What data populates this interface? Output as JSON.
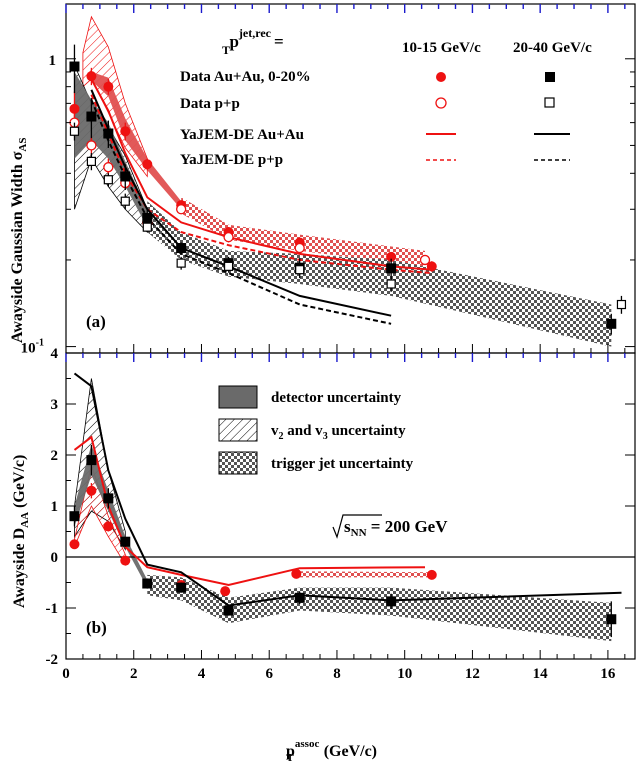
{
  "chart_data": [
    {
      "type": "scatter",
      "panel_label": "(a)",
      "ylabel": "Awayside Gaussian Width σ",
      "ylabel_sub": "AS",
      "y_scale": "log",
      "xlim": [
        0,
        16.8
      ],
      "ylim": [
        0.095,
        1.55
      ],
      "y_ticks": [
        {
          "value": 1,
          "label": "1"
        },
        {
          "value": 0.1,
          "label": "10",
          "sup": "-1"
        }
      ],
      "legend": {
        "title": "p",
        "title_sup": "jet,rec",
        "title_sub": "T",
        "title_suffix": "=",
        "col1": "10-15 GeV/c",
        "col2": "20-40 GeV/c",
        "rows": [
          "Data Au+Au, 0-20%",
          "Data p+p",
          "YaJEM-DE Au+Au",
          "YaJEM-DE p+p"
        ]
      },
      "series": [
        {
          "name": "Data Au+Au, 0-20% (10-15 GeV/c)",
          "color": "#ee1111",
          "marker": "circle-filled",
          "x": [
            0.25,
            0.75,
            1.25,
            1.75,
            2.4,
            3.4,
            4.8,
            6.9,
            9.6,
            10.8
          ],
          "y": [
            0.67,
            0.87,
            0.8,
            0.56,
            0.43,
            0.31,
            0.25,
            0.23,
            0.205,
            0.19
          ],
          "err": [
            0.1,
            0.06,
            0.05,
            0.04,
            0.02,
            0.01,
            0.01,
            0.008,
            0.008,
            0.008
          ]
        },
        {
          "name": "Data p+p (10-15 GeV/c)",
          "color": "#ee1111",
          "marker": "circle-open",
          "x": [
            0.25,
            0.75,
            1.25,
            1.75,
            2.4,
            3.4,
            4.8,
            6.9,
            10.6
          ],
          "y": [
            0.6,
            0.5,
            0.42,
            0.37,
            0.27,
            0.3,
            0.24,
            0.22,
            0.2
          ],
          "err": [
            0.05,
            0.04,
            0.03,
            0.02,
            0.01,
            0.01,
            0.01,
            0.008,
            0.008
          ]
        },
        {
          "name": "Data Au+Au, 0-20% (20-40 GeV/c)",
          "color": "#000000",
          "marker": "square-filled",
          "x": [
            0.25,
            0.75,
            1.25,
            1.75,
            2.4,
            3.4,
            4.8,
            6.9,
            9.6,
            16.1
          ],
          "y": [
            0.94,
            0.63,
            0.55,
            0.39,
            0.28,
            0.22,
            0.195,
            0.188,
            0.187,
            0.12
          ],
          "err": [
            0.18,
            0.1,
            0.06,
            0.04,
            0.02,
            0.01,
            0.01,
            0.015,
            0.015,
            0.01
          ]
        },
        {
          "name": "Data p+p (20-40 GeV/c)",
          "color": "#000000",
          "marker": "square-open",
          "x": [
            0.25,
            0.75,
            1.25,
            1.75,
            2.4,
            3.4,
            4.8,
            6.9,
            9.6,
            16.4
          ],
          "y": [
            0.56,
            0.44,
            0.38,
            0.32,
            0.26,
            0.195,
            0.19,
            0.185,
            0.165,
            0.14
          ],
          "err": [
            0.04,
            0.03,
            0.02,
            0.02,
            0.01,
            0.01,
            0.008,
            0.008,
            0.01,
            0.01
          ]
        }
      ],
      "model_lines": [
        {
          "name": "YaJEM-DE Au+Au (10-15 GeV/c)",
          "color": "#ee1111",
          "dash": "solid",
          "x": [
            0.75,
            1.25,
            1.75,
            2.4,
            3.4,
            4.8,
            6.9,
            9.6,
            10.8
          ],
          "y": [
            0.85,
            0.66,
            0.47,
            0.33,
            0.27,
            0.24,
            0.21,
            0.19,
            0.185
          ]
        },
        {
          "name": "YaJEM-DE p+p (10-15 GeV/c)",
          "color": "#ee1111",
          "dash": "dashed",
          "x": [
            0.75,
            1.25,
            1.75,
            2.4,
            3.4,
            4.8,
            6.9,
            9.6,
            10.8
          ],
          "y": [
            0.75,
            0.55,
            0.4,
            0.3,
            0.25,
            0.225,
            0.2,
            0.185,
            0.18
          ]
        },
        {
          "name": "YaJEM-DE Au+Au (20-40 GeV/c)",
          "color": "#000000",
          "dash": "solid",
          "x": [
            0.75,
            1.25,
            1.75,
            2.4,
            3.4,
            4.8,
            6.9,
            9.6
          ],
          "y": [
            0.78,
            0.57,
            0.42,
            0.3,
            0.22,
            0.19,
            0.15,
            0.128
          ]
        },
        {
          "name": "YaJEM-DE p+p (20-40 GeV/c)",
          "color": "#000000",
          "dash": "dashed",
          "x": [
            0.75,
            1.25,
            1.75,
            2.4,
            3.4,
            4.8,
            6.9,
            9.6
          ],
          "y": [
            0.72,
            0.52,
            0.39,
            0.28,
            0.21,
            0.18,
            0.14,
            0.12
          ]
        }
      ],
      "bands": [
        {
          "name": "v2 and v3 uncertainty (10-15 GeV/c)",
          "style": "hatch",
          "color": "#ee1111",
          "x": [
            0.5,
            0.75,
            1.25,
            1.75,
            2.4
          ],
          "low": [
            0.8,
            0.85,
            0.65,
            0.49,
            0.39
          ],
          "high": [
            1.05,
            1.4,
            1.1,
            0.7,
            0.45
          ]
        },
        {
          "name": "detector uncertainty (10-15 GeV/c)",
          "style": "solid",
          "color": "#e05050",
          "x": [
            0.75,
            1.25,
            1.75,
            2.4,
            3.4,
            4.8
          ],
          "low": [
            0.84,
            0.74,
            0.52,
            0.41,
            0.3,
            0.245
          ],
          "high": [
            0.9,
            0.86,
            0.62,
            0.45,
            0.32,
            0.255
          ]
        },
        {
          "name": "trigger jet uncertainty (10-15 GeV/c)",
          "style": "checker",
          "color": "#ee1111",
          "x": [
            3.4,
            4.8,
            6.9,
            10.6
          ],
          "low": [
            0.29,
            0.235,
            0.215,
            0.19
          ],
          "high": [
            0.33,
            0.265,
            0.245,
            0.215
          ]
        },
        {
          "name": "v2 and v3 uncertainty (20-40 GeV/c)",
          "style": "hatch",
          "color": "#000000",
          "x": [
            0.25,
            0.75,
            1.25,
            1.75,
            2.4
          ],
          "low": [
            0.3,
            0.45,
            0.36,
            0.3,
            0.25
          ],
          "high": [
            0.95,
            0.7,
            0.58,
            0.46,
            0.3
          ]
        },
        {
          "name": "detector uncertainty (20-40 GeV/c)",
          "style": "solid",
          "color": "#6a6a6a",
          "x": [
            0.25,
            0.75,
            1.25,
            1.75,
            2.4,
            3.4,
            4.8,
            6.9,
            9.6,
            16.1
          ],
          "low": [
            0.45,
            0.52,
            0.45,
            0.36,
            0.26,
            0.21,
            0.185,
            0.18,
            0.165,
            0.115
          ],
          "high": [
            0.9,
            0.72,
            0.6,
            0.44,
            0.3,
            0.235,
            0.205,
            0.2,
            0.19,
            0.125
          ]
        },
        {
          "name": "trigger jet uncertainty (20-40 GeV/c)",
          "style": "checker",
          "color": "#000000",
          "x": [
            2.4,
            3.4,
            4.8,
            6.9,
            9.6,
            16.1
          ],
          "low": [
            0.25,
            0.2,
            0.175,
            0.165,
            0.15,
            0.1
          ],
          "high": [
            0.32,
            0.25,
            0.215,
            0.21,
            0.2,
            0.14
          ]
        }
      ]
    },
    {
      "type": "scatter",
      "panel_label": "(b)",
      "ylabel": "Awayside D",
      "ylabel_sub": "AA",
      "ylabel_suffix": " (GeV/c)",
      "xlabel": "p",
      "xlabel_sup": "assoc",
      "xlabel_sub": "T",
      "xlabel_suffix": " (GeV/c)",
      "xlim": [
        0,
        16.8
      ],
      "ylim": [
        -2,
        4
      ],
      "x_ticks": [
        0,
        2,
        4,
        6,
        8,
        10,
        12,
        14,
        16
      ],
      "y_ticks": [
        -2,
        -1,
        0,
        1,
        2,
        3,
        4
      ],
      "annotation": {
        "prefix": "s",
        "sub": "NN",
        "suffix": " = 200 GeV"
      },
      "legend": [
        "detector uncertainty",
        "v2 and v3 uncertainty",
        "trigger jet uncertainty"
      ],
      "legend_v_label": {
        "a": "v",
        "a_sub": "2",
        "mid": " and v",
        "b_sub": "3",
        "tail": " uncertainty"
      },
      "series": [
        {
          "name": "Data Au+Au, 0-20% (10-15 GeV/c)",
          "color": "#ee1111",
          "marker": "circle-filled",
          "x": [
            0.25,
            0.75,
            1.25,
            1.75,
            3.4,
            4.7,
            6.8,
            10.8
          ],
          "y": [
            0.25,
            1.3,
            0.6,
            -0.07,
            -0.55,
            -0.67,
            -0.33,
            -0.35
          ],
          "err": [
            0.05,
            0.15,
            0.1,
            0.05,
            0.05,
            0.05,
            0.05,
            0.05
          ]
        },
        {
          "name": "Data Au+Au, 0-20% (20-40 GeV/c)",
          "color": "#000000",
          "marker": "square-filled",
          "x": [
            0.25,
            0.75,
            1.25,
            1.75,
            2.4,
            3.4,
            4.8,
            6.9,
            9.6,
            16.1
          ],
          "y": [
            0.8,
            1.9,
            1.15,
            0.3,
            -0.52,
            -0.6,
            -1.05,
            -0.8,
            -0.87,
            -1.22
          ],
          "err": [
            0.2,
            0.3,
            0.2,
            0.1,
            0.1,
            0.1,
            0.1,
            0.12,
            0.15,
            0.35
          ]
        }
      ],
      "model_lines": [
        {
          "name": "YaJEM-DE Au+Au (10-15 GeV/c)",
          "color": "#ee1111",
          "x": [
            0.25,
            0.75,
            1.25,
            1.75,
            2.4,
            3.4,
            4.8,
            6.9,
            10.6
          ],
          "y": [
            2.1,
            2.35,
            1.0,
            0.2,
            -0.2,
            -0.35,
            -0.55,
            -0.22,
            -0.2
          ]
        },
        {
          "name": "YaJEM-DE Au+Au (20-40 GeV/c)",
          "color": "#000000",
          "x": [
            0.25,
            0.75,
            1.25,
            1.75,
            2.4,
            3.4,
            4.8,
            6.9,
            9.6,
            16.4
          ],
          "y": [
            3.6,
            3.35,
            1.7,
            0.75,
            -0.15,
            -0.3,
            -0.95,
            -0.75,
            -0.85,
            -0.7
          ]
        }
      ],
      "bands": [
        {
          "name": "v2 and v3 uncertainty (20-40 GeV/c)",
          "style": "hatch",
          "color": "#000000",
          "x": [
            0.25,
            0.75,
            1.25,
            1.75
          ],
          "low": [
            0.4,
            0.9,
            0.7,
            0.15
          ],
          "high": [
            1.0,
            3.5,
            1.7,
            0.5
          ]
        },
        {
          "name": "v2 and v3 uncertainty (10-15 GeV/c)",
          "style": "hatch",
          "color": "#ee1111",
          "x": [
            0.25,
            0.75,
            1.25,
            1.75
          ],
          "low": [
            0.2,
            1.0,
            0.4,
            -0.15
          ],
          "high": [
            0.35,
            1.8,
            0.8,
            0.05
          ]
        },
        {
          "name": "detector uncertainty (20-40 GeV/c)",
          "style": "solid",
          "color": "#6a6a6a",
          "x": [
            0.25,
            0.75,
            1.25,
            1.75,
            2.4,
            3.4,
            4.8,
            6.9,
            9.6,
            16.1
          ],
          "low": [
            0.6,
            1.6,
            0.9,
            0.2,
            -0.6,
            -0.7,
            -1.15,
            -0.88,
            -0.95,
            -1.35
          ],
          "high": [
            1.0,
            2.2,
            1.3,
            0.4,
            -0.45,
            -0.5,
            -0.95,
            -0.72,
            -0.78,
            -1.1
          ]
        },
        {
          "name": "trigger jet uncertainty (20-40 GeV/c)",
          "style": "checker",
          "color": "#000000",
          "x": [
            2.4,
            3.4,
            4.8,
            6.9,
            9.6,
            16.1
          ],
          "low": [
            -0.75,
            -0.85,
            -1.3,
            -1.05,
            -1.15,
            -1.65
          ],
          "high": [
            -0.35,
            -0.4,
            -0.8,
            -0.6,
            -0.6,
            -0.9
          ]
        },
        {
          "name": "trigger jet uncertainty (10-15 GeV/c)",
          "style": "checker",
          "color": "#ee1111",
          "x": [
            6.8,
            10.8
          ],
          "low": [
            -0.4,
            -0.4
          ],
          "high": [
            -0.28,
            -0.3
          ]
        }
      ]
    }
  ]
}
